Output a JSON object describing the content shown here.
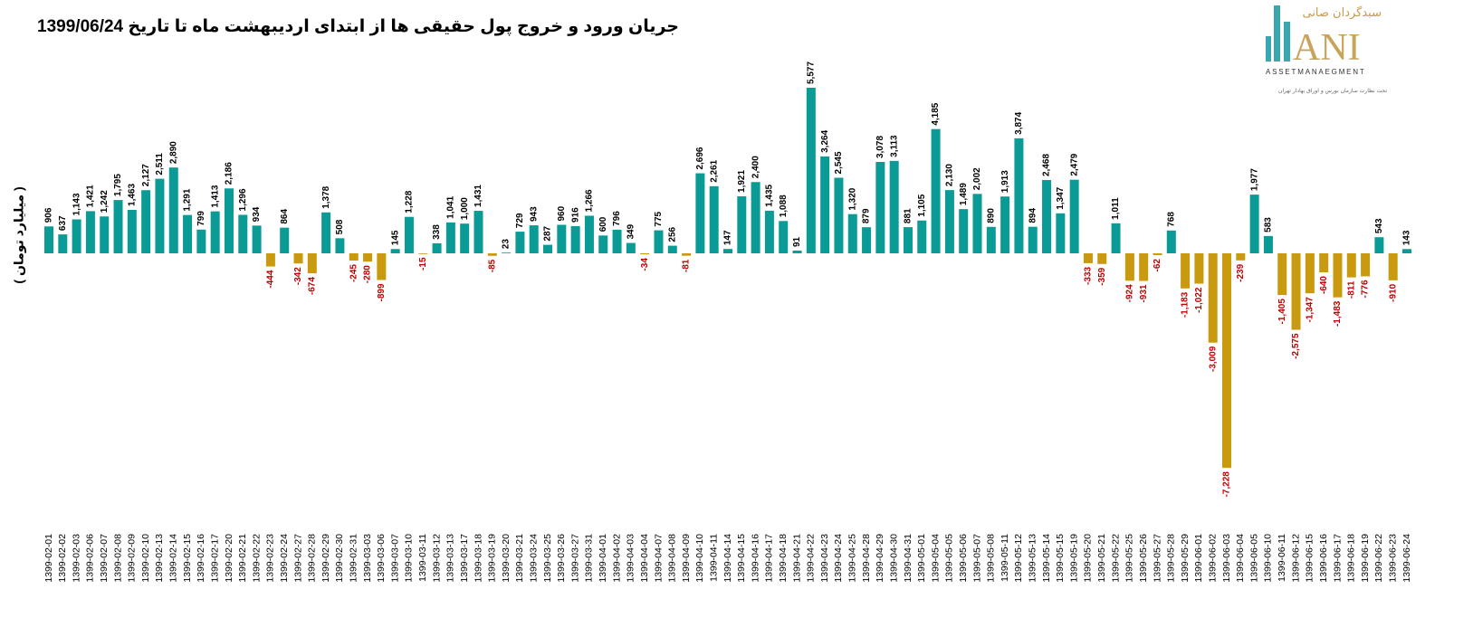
{
  "chart_data": {
    "type": "bar",
    "title": "جریان ورود و خروج پول حقیقی ها از ابتدای اردیبهشت ماه تا تاریخ 1399/06/24",
    "xlabel": "",
    "ylabel": "( میلیارد تومان )",
    "ylim": [
      -8500,
      6000
    ],
    "grid": false,
    "legend": "none",
    "colors": {
      "positive": "#0b9b97",
      "negative": "#c99a0e",
      "positive_label": "#000000",
      "negative_label": "#c00000"
    },
    "categories": [
      "1399-02-01",
      "1399-02-02",
      "1399-02-03",
      "1399-02-06",
      "1399-02-07",
      "1399-02-08",
      "1399-02-09",
      "1399-02-10",
      "1399-02-13",
      "1399-02-14",
      "1399-02-15",
      "1399-02-16",
      "1399-02-17",
      "1399-02-20",
      "1399-02-21",
      "1399-02-22",
      "1399-02-23",
      "1399-02-24",
      "1399-02-27",
      "1399-02-28",
      "1399-02-29",
      "1399-02-30",
      "1399-02-31",
      "1399-03-03",
      "1399-03-06",
      "1399-03-07",
      "1399-03-10",
      "1399-03-11",
      "1399-03-12",
      "1399-03-13",
      "1399-03-17",
      "1399-03-18",
      "1399-03-19",
      "1399-03-20",
      "1399-03-21",
      "1399-03-24",
      "1399-03-25",
      "1399-03-26",
      "1399-03-27",
      "1399-03-31",
      "1399-04-01",
      "1399-04-02",
      "1399-04-03",
      "1399-04-04",
      "1399-04-07",
      "1399-04-08",
      "1399-04-09",
      "1399-04-10",
      "1399-04-11",
      "1399-04-14",
      "1399-04-15",
      "1399-04-16",
      "1399-04-17",
      "1399-04-18",
      "1399-04-21",
      "1399-04-22",
      "1399-04-23",
      "1399-04-24",
      "1399-04-25",
      "1399-04-28",
      "1399-04-29",
      "1399-04-30",
      "1399-04-31",
      "1399-05-01",
      "1399-05-04",
      "1399-05-05",
      "1399-05-06",
      "1399-05-07",
      "1399-05-08",
      "1399-05-11",
      "1399-05-12",
      "1399-05-13",
      "1399-05-14",
      "1399-05-15",
      "1399-05-19",
      "1399-05-20",
      "1399-05-21",
      "1399-05-22",
      "1399-05-25",
      "1399-05-26",
      "1399-05-27",
      "1399-05-28",
      "1399-05-29",
      "1399-06-01",
      "1399-06-02",
      "1399-06-03",
      "1399-06-04",
      "1399-06-05",
      "1399-06-10",
      "1399-06-11",
      "1399-06-12",
      "1399-06-15",
      "1399-06-16",
      "1399-06-17",
      "1399-06-18",
      "1399-06-19",
      "1399-06-22",
      "1399-06-23",
      "1399-06-24"
    ],
    "values": [
      906,
      637,
      1143,
      1421,
      1242,
      1795,
      1463,
      2127,
      2511,
      2890,
      1291,
      799,
      1413,
      2186,
      1296,
      934,
      -444,
      864,
      -342,
      -674,
      1378,
      508,
      -245,
      -280,
      -899,
      145,
      1228,
      -15,
      338,
      1041,
      1000,
      1431,
      -85,
      23,
      729,
      943,
      287,
      960,
      916,
      1266,
      600,
      796,
      349,
      -34,
      775,
      256,
      -81,
      2696,
      2261,
      147,
      1921,
      2400,
      1435,
      1088,
      91,
      5577,
      3264,
      2545,
      1320,
      879,
      3078,
      3113,
      881,
      1105,
      4185,
      2130,
      1489,
      2002,
      890,
      1913,
      3874,
      894,
      2468,
      1347,
      2479,
      -333,
      -359,
      1011,
      -924,
      -931,
      -62,
      768,
      -1183,
      -1022,
      -3009,
      -7228,
      -239,
      1977,
      583,
      -1405,
      -2575,
      -1347,
      -640,
      -1483,
      -811,
      -776,
      543,
      -910,
      143
    ]
  },
  "logo": {
    "brand_fa": "سبدگردان صانی",
    "brand_en": "SANI",
    "subtitle_en": "ASSETMANAEGMENT",
    "subtitle_fa": "تحت نظارت سازمان بورس و اوراق بهادار تهران"
  }
}
